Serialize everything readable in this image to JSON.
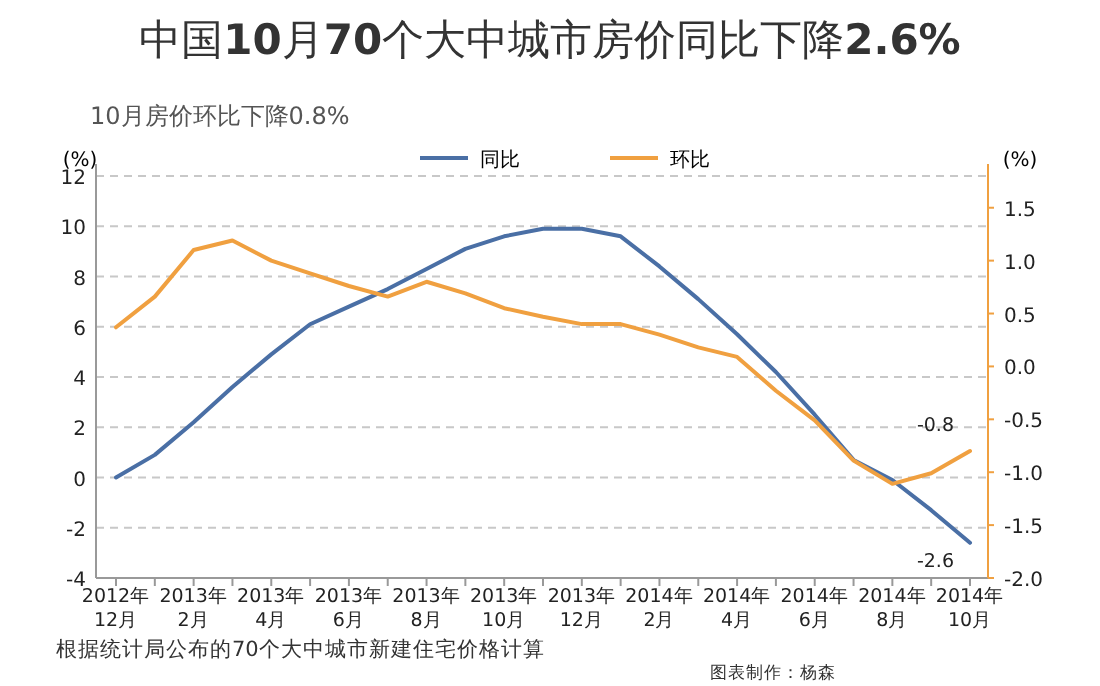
{
  "chart_data": {
    "type": "line",
    "title": "中国**10**月**70**个大中城市房价同比下降**2.6%**",
    "subtitle": "10月房价环比下降0.8%",
    "ylabel": "(%)",
    "y2label": "(%)",
    "categories": [
      "2012年\n12月",
      null,
      "2013年\n2月",
      null,
      "2013年\n4月",
      null,
      "2013年\n6月",
      null,
      "2013年\n8月",
      null,
      "2013年\n10月",
      null,
      "2013年\n12月",
      null,
      "2014年\n2月",
      null,
      "2014年\n4月",
      null,
      "2014年\n6月",
      null,
      "2014年\n8月",
      null,
      "2014年\n10月"
    ],
    "series": [
      {
        "name": "同比",
        "color": "#4a6fa5",
        "values": [
          0,
          0.9,
          2.2,
          3.6,
          4.9,
          6.1,
          6.8,
          7.5,
          8.3,
          9.1,
          9.6,
          9.9,
          9.9,
          9.6,
          8.4,
          7.1,
          5.7,
          4.2,
          2.5,
          0.7,
          -0.1,
          -1.3,
          -2.6
        ]
      },
      {
        "name": "环比",
        "color": "#f0a040",
        "axis": "y2",
        "values": [
          0.37,
          0.66,
          1.1,
          1.19,
          1.0,
          0.88,
          0.76,
          0.66,
          0.8,
          0.69,
          0.55,
          0.47,
          0.4,
          0.4,
          0.3,
          0.18,
          0.09,
          -0.23,
          -0.51,
          -0.89,
          -1.11,
          -1.01,
          -0.8
        ]
      }
    ],
    "ylim": [
      -4,
      12
    ],
    "yticks": [
      -4,
      -2,
      0,
      2,
      4,
      6,
      8,
      10,
      12
    ],
    "y2lim": [
      -2,
      1.8
    ],
    "y2ticks": [
      {
        "value": -2,
        "label": "-2.0"
      },
      {
        "value": -1.5,
        "label": "-1.5"
      },
      {
        "value": -1,
        "label": "-1.0"
      },
      {
        "value": -0.5,
        "label": "-0.5"
      },
      {
        "value": 0,
        "label": "0.0"
      },
      {
        "value": 0.5,
        "label": "0.5"
      },
      {
        "value": 1,
        "label": "1.0"
      },
      {
        "value": 1.5,
        "label": "1.5"
      }
    ],
    "grid": "y",
    "legend": "top",
    "marker": "none",
    "line_style": "solid",
    "annotations": [
      "-0.8",
      "-2.6",
      "根据统计局公布的70个大中城市新建住宅价格计算",
      "图表制作：杨森"
    ]
  }
}
